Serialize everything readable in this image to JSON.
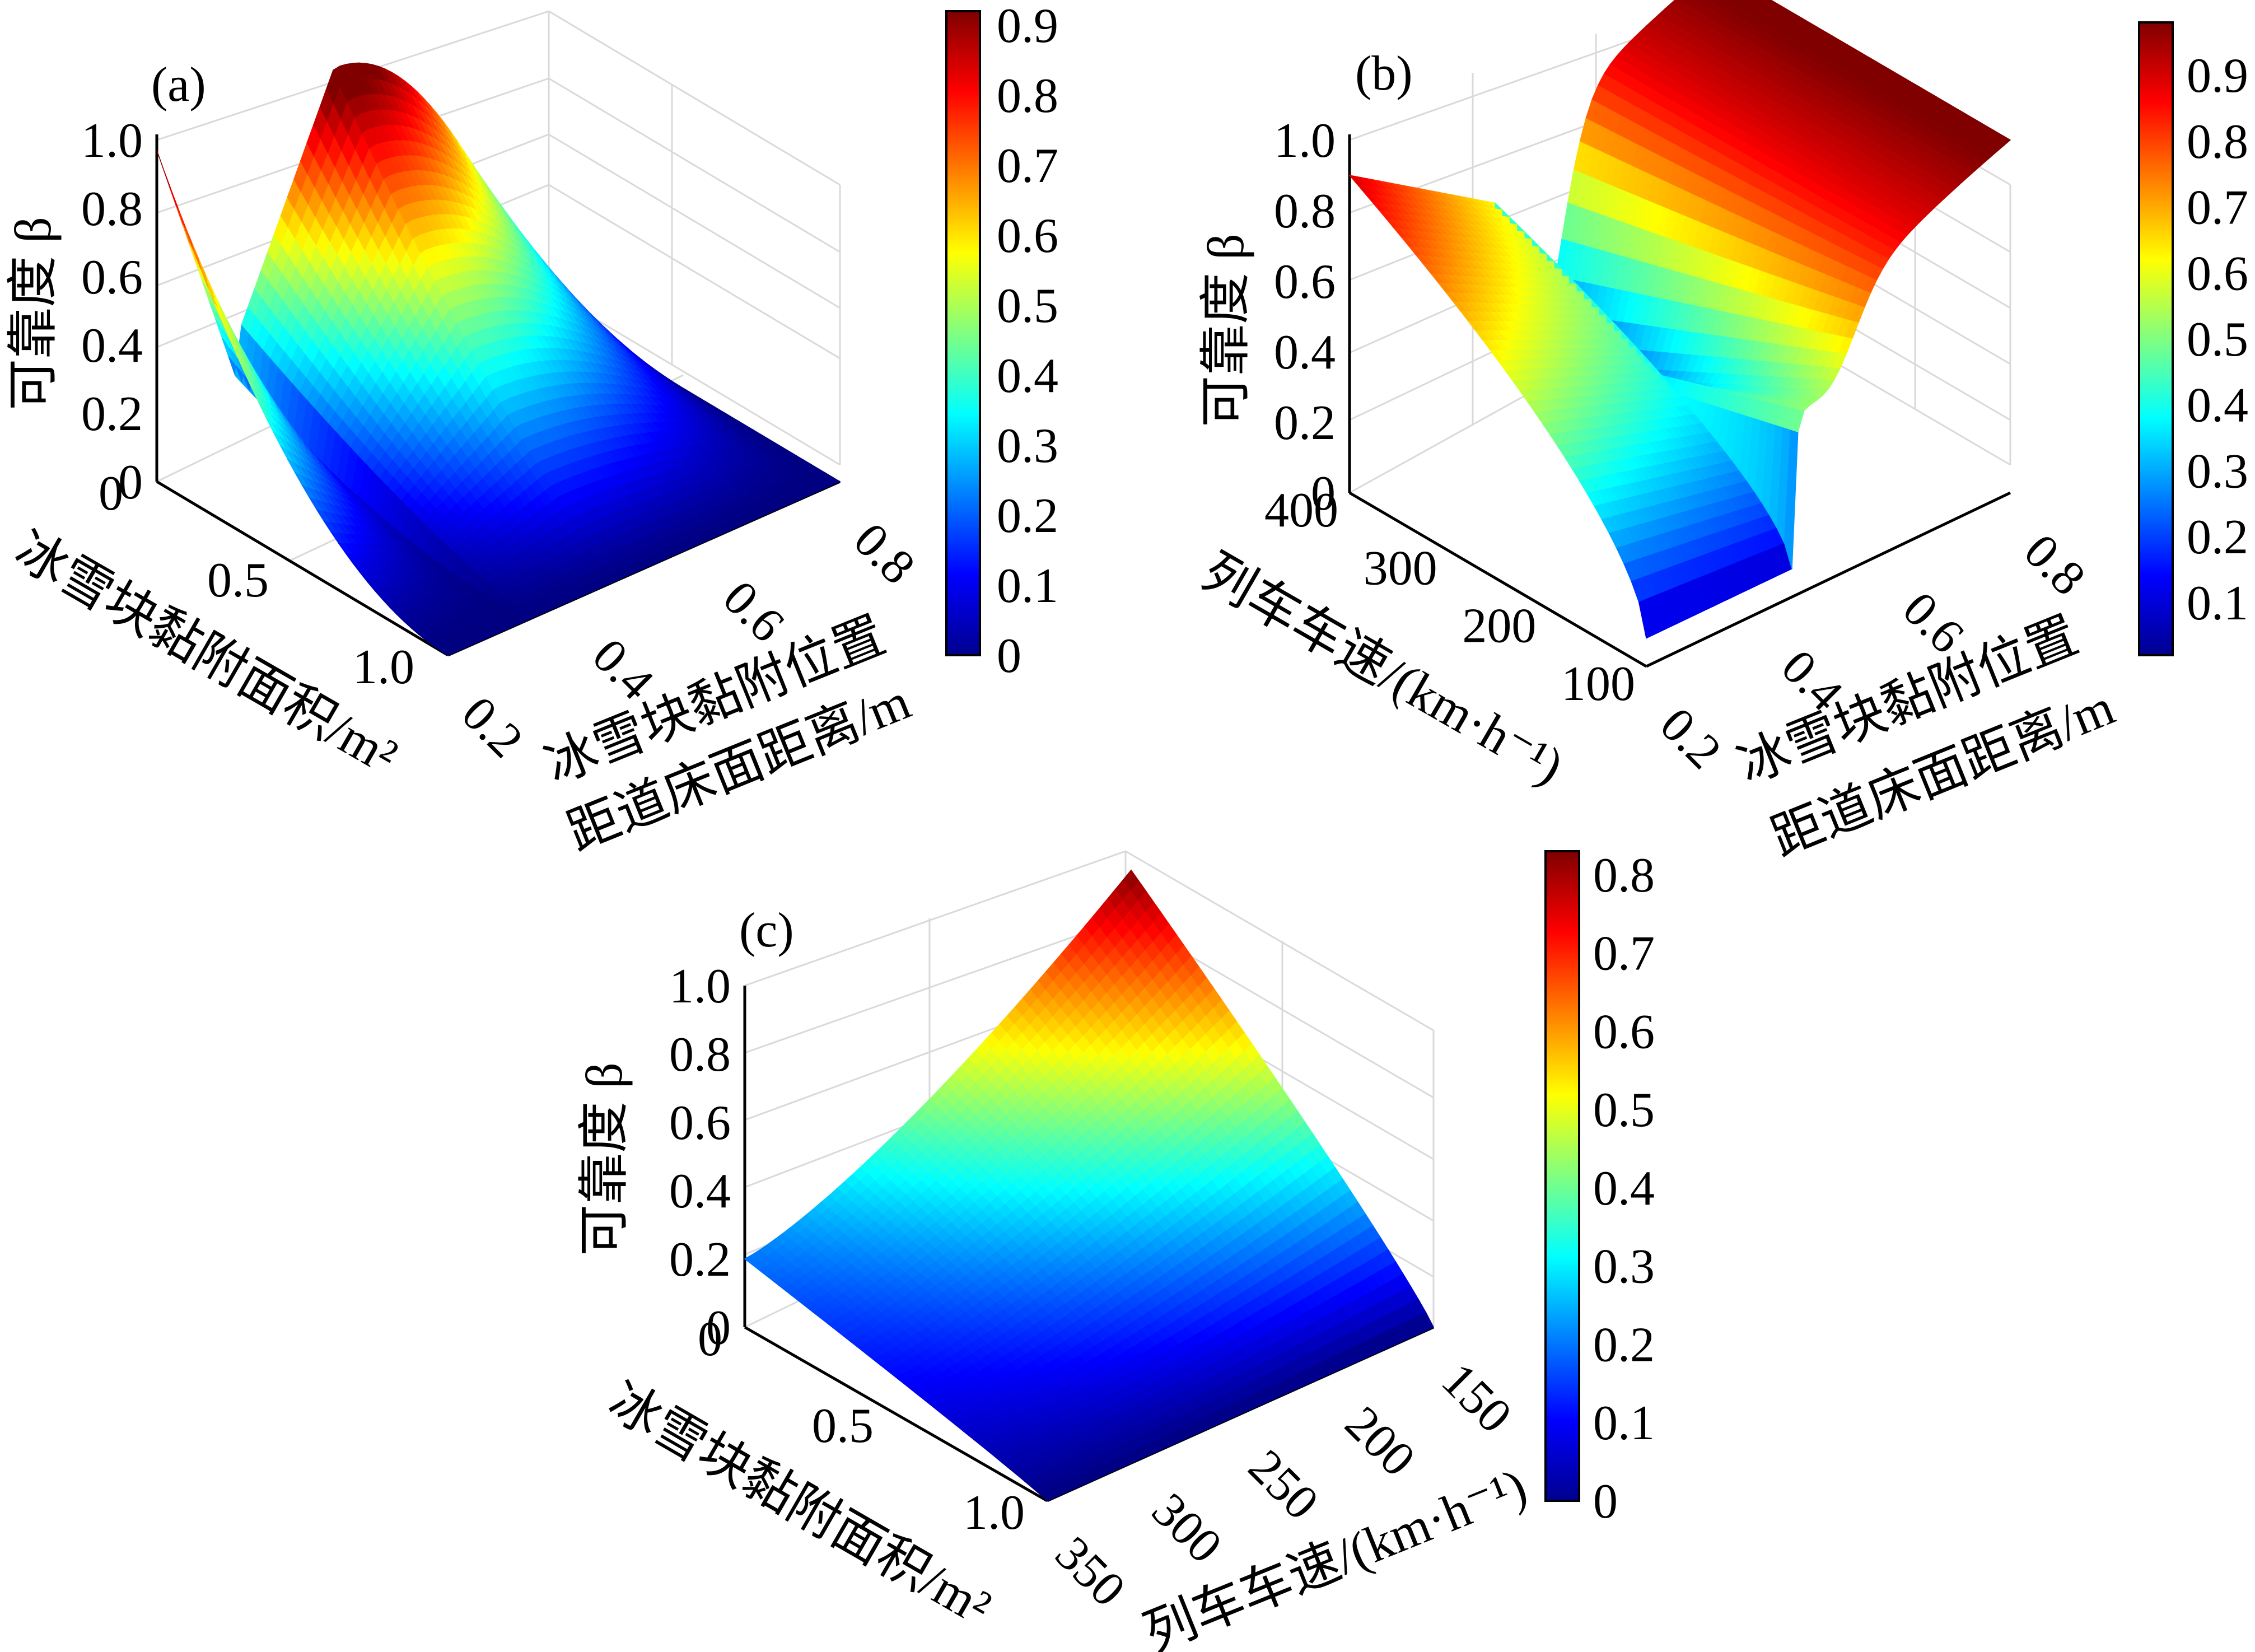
{
  "chart_data": [
    {
      "panel": "(a)",
      "type": "surface3d",
      "zlabel": "可靠度 β",
      "ylabel": "冰雪块黏附面积/m²",
      "xlabel": [
        "冰雪块黏附位置",
        "距道床面距离/m"
      ],
      "x_ticks": [
        "0.2",
        "0.4",
        "0.6",
        "0.8"
      ],
      "y_ticks": [
        "0",
        "0.5",
        "1.0"
      ],
      "z_ticks": [
        "0",
        "0.2",
        "0.4",
        "0.6",
        "0.8",
        "1.0"
      ],
      "xlim": [
        0.2,
        0.8
      ],
      "ylim": [
        0,
        1.0
      ],
      "zlim": [
        0,
        1.0
      ],
      "colorbar_ticks": [
        "0",
        "0.1",
        "0.2",
        "0.3",
        "0.4",
        "0.5",
        "0.6",
        "0.7",
        "0.8",
        "0.9"
      ],
      "colorbar_range": [
        0,
        0.92
      ],
      "colormap": "jet",
      "surface_samples": {
        "note_points": [
          {
            "x": 0.2,
            "y": 1.0,
            "z": 0.97
          },
          {
            "x": 0.2,
            "y": 0.0,
            "z": 0.0
          },
          {
            "x": 0.32,
            "y": 0.0,
            "z": 0.0
          },
          {
            "x": 0.5,
            "y": 1.0,
            "z": 0.95
          },
          {
            "x": 0.8,
            "y": 1.0,
            "z": 0.0
          },
          {
            "x": 0.8,
            "y": 0.0,
            "z": 0.0
          }
        ]
      }
    },
    {
      "panel": "(b)",
      "type": "surface3d",
      "zlabel": "可靠度 β",
      "ylabel": "列车车速/(km·h⁻¹)",
      "xlabel": [
        "冰雪块黏附位置",
        "距道床面距离/m"
      ],
      "x_ticks": [
        "0.2",
        "0.4",
        "0.6",
        "0.8"
      ],
      "y_ticks": [
        "100",
        "200",
        "300",
        "400"
      ],
      "z_ticks": [
        "0",
        "0.2",
        "0.4",
        "0.6",
        "0.8",
        "1.0"
      ],
      "xlim": [
        0.2,
        0.8
      ],
      "ylim": [
        100,
        400
      ],
      "zlim": [
        0,
        1.0
      ],
      "colorbar_ticks": [
        "0.1",
        "0.2",
        "0.3",
        "0.4",
        "0.5",
        "0.6",
        "0.7",
        "0.8",
        "0.9"
      ],
      "colorbar_range": [
        0.02,
        0.98
      ],
      "colormap": "jet"
    },
    {
      "panel": "(c)",
      "type": "surface3d",
      "zlabel": "可靠度 β",
      "ylabel": "冰雪块黏附面积/m²",
      "xlabel": [
        "列车车速/(km·h⁻¹)"
      ],
      "x_ticks": [
        "350",
        "300",
        "250",
        "200",
        "150"
      ],
      "y_ticks": [
        "0",
        "0.5",
        "1.0"
      ],
      "z_ticks": [
        "0",
        "0.2",
        "0.4",
        "0.6",
        "0.8",
        "1.0"
      ],
      "xlim": [
        350,
        150
      ],
      "ylim": [
        0,
        1.0
      ],
      "zlim": [
        0,
        1.0
      ],
      "colorbar_ticks": [
        "0",
        "0.1",
        "0.2",
        "0.3",
        "0.4",
        "0.5",
        "0.6",
        "0.7",
        "0.8"
      ],
      "colorbar_range": [
        0,
        0.83
      ],
      "colormap": "jet"
    }
  ]
}
